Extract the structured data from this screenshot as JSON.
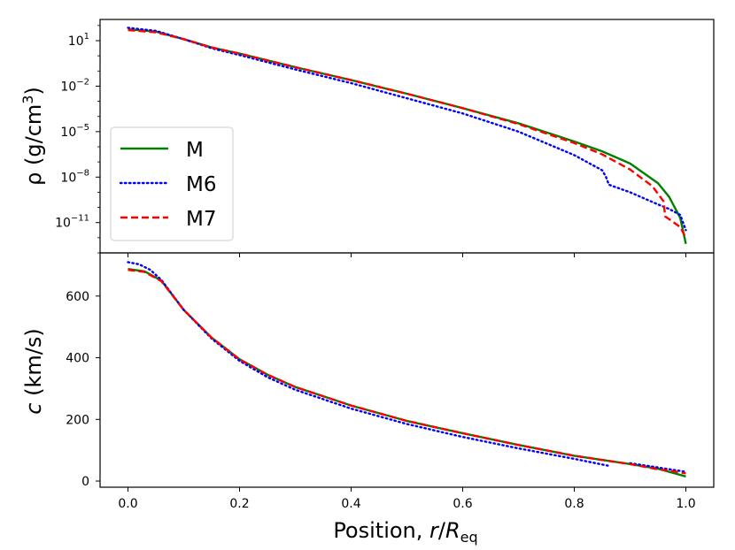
{
  "chart_data": [
    {
      "type": "line",
      "panel": "top",
      "yscale": "log",
      "ylabel_main": "ρ (g/cm",
      "ylabel_sup": "3",
      "ylabel_tail": ")",
      "xlim": [
        -0.05,
        1.05
      ],
      "ylog_range": [
        -13.0,
        2.4
      ],
      "ytick_exps": [
        1,
        -2,
        -5,
        -8,
        -11
      ],
      "ytick_base": "10",
      "ytick_sups": [
        "1",
        "−2",
        "−5",
        "−8",
        "−11"
      ],
      "legend": {
        "position": "lower-left",
        "entries": [
          "M",
          "M6",
          "M7"
        ]
      },
      "series": [
        {
          "name": "M",
          "color": "#008000",
          "style": "solid",
          "points": [
            [
              0.0,
              1.75
            ],
            [
              0.05,
              1.6
            ],
            [
              0.1,
              1.1
            ],
            [
              0.15,
              0.55
            ],
            [
              0.2,
              0.15
            ],
            [
              0.3,
              -0.75
            ],
            [
              0.4,
              -1.6
            ],
            [
              0.5,
              -2.5
            ],
            [
              0.6,
              -3.45
            ],
            [
              0.7,
              -4.45
            ],
            [
              0.8,
              -5.65
            ],
            [
              0.85,
              -6.3
            ],
            [
              0.9,
              -7.1
            ],
            [
              0.95,
              -8.4
            ],
            [
              0.97,
              -9.3
            ],
            [
              0.99,
              -10.7
            ],
            [
              1.0,
              -12.4
            ]
          ]
        },
        {
          "name": "M6",
          "color": "#0000ff",
          "style": "dotted",
          "points": [
            [
              0.0,
              1.85
            ],
            [
              0.05,
              1.65
            ],
            [
              0.1,
              1.1
            ],
            [
              0.15,
              0.5
            ],
            [
              0.2,
              0.05
            ],
            [
              0.3,
              -0.9
            ],
            [
              0.4,
              -1.8
            ],
            [
              0.5,
              -2.8
            ],
            [
              0.6,
              -3.8
            ],
            [
              0.7,
              -5.0
            ],
            [
              0.8,
              -6.55
            ],
            [
              0.85,
              -7.55
            ],
            [
              0.857,
              -8.0
            ],
            [
              0.862,
              -8.5
            ],
            [
              0.9,
              -9.0
            ],
            [
              0.95,
              -9.8
            ],
            [
              0.97,
              -10.1
            ],
            [
              0.99,
              -10.5
            ],
            [
              1.0,
              -11.5
            ]
          ]
        },
        {
          "name": "M7",
          "color": "#ff0000",
          "style": "dashed",
          "points": [
            [
              0.0,
              1.7
            ],
            [
              0.05,
              1.55
            ],
            [
              0.1,
              1.1
            ],
            [
              0.15,
              0.55
            ],
            [
              0.2,
              0.15
            ],
            [
              0.3,
              -0.75
            ],
            [
              0.4,
              -1.6
            ],
            [
              0.5,
              -2.5
            ],
            [
              0.6,
              -3.45
            ],
            [
              0.7,
              -4.5
            ],
            [
              0.8,
              -5.75
            ],
            [
              0.85,
              -6.5
            ],
            [
              0.9,
              -7.5
            ],
            [
              0.94,
              -8.6
            ],
            [
              0.96,
              -9.6
            ],
            [
              0.963,
              -10.6
            ],
            [
              0.975,
              -10.9
            ],
            [
              0.99,
              -11.3
            ],
            [
              1.0,
              -12.0
            ]
          ]
        }
      ]
    },
    {
      "type": "line",
      "panel": "bottom",
      "yscale": "linear",
      "ylabel_main": "c",
      "ylabel_tail": " (km/s)",
      "xlabel_main": "Position, ",
      "xlabel_r": "r",
      "xlabel_slash": "/",
      "xlabel_R": "R",
      "xlabel_sub": "eq",
      "xlim": [
        -0.05,
        1.05
      ],
      "ylim": [
        -20,
        740
      ],
      "xticks": [
        0.0,
        0.2,
        0.4,
        0.6,
        0.8,
        1.0
      ],
      "xtick_labels": [
        "0.0",
        "0.2",
        "0.4",
        "0.6",
        "0.8",
        "1.0"
      ],
      "yticks": [
        0,
        200,
        400,
        600
      ],
      "ytick_labels": [
        "0",
        "200",
        "400",
        "600"
      ],
      "series": [
        {
          "name": "M",
          "color": "#008000",
          "style": "solid",
          "points": [
            [
              0.0,
              688
            ],
            [
              0.03,
              680
            ],
            [
              0.06,
              650
            ],
            [
              0.1,
              555
            ],
            [
              0.15,
              465
            ],
            [
              0.2,
              395
            ],
            [
              0.25,
              345
            ],
            [
              0.3,
              305
            ],
            [
              0.4,
              245
            ],
            [
              0.5,
              195
            ],
            [
              0.6,
              155
            ],
            [
              0.7,
              117
            ],
            [
              0.8,
              82
            ],
            [
              0.9,
              55
            ],
            [
              0.95,
              40
            ],
            [
              1.0,
              15
            ]
          ]
        },
        {
          "name": "M6",
          "color": "#0000ff",
          "style": "dotted",
          "points": [
            [
              0.0,
              710
            ],
            [
              0.02,
              703
            ],
            [
              0.04,
              685
            ],
            [
              0.06,
              652
            ],
            [
              0.1,
              555
            ],
            [
              0.15,
              462
            ],
            [
              0.2,
              390
            ],
            [
              0.25,
              337
            ],
            [
              0.3,
              296
            ],
            [
              0.4,
              235
            ],
            [
              0.5,
              185
            ],
            [
              0.6,
              143
            ],
            [
              0.7,
              106
            ],
            [
              0.8,
              72
            ],
            [
              0.86,
              50
            ]
          ]
        },
        {
          "name": "M6",
          "color": "#0000ff",
          "style": "dotted",
          "points": [
            [
              0.9,
              58
            ],
            [
              0.95,
              44
            ],
            [
              1.0,
              30
            ]
          ]
        },
        {
          "name": "M7",
          "color": "#ff0000",
          "style": "dashed",
          "points": [
            [
              0.0,
              685
            ],
            [
              0.03,
              678
            ],
            [
              0.06,
              648
            ],
            [
              0.1,
              555
            ],
            [
              0.15,
              465
            ],
            [
              0.2,
              395
            ],
            [
              0.25,
              345
            ],
            [
              0.3,
              305
            ],
            [
              0.4,
              245
            ],
            [
              0.5,
              195
            ],
            [
              0.6,
              155
            ],
            [
              0.7,
              117
            ],
            [
              0.8,
              82
            ],
            [
              0.9,
              55
            ],
            [
              0.95,
              38
            ],
            [
              0.97,
              34
            ],
            [
              1.0,
              25
            ]
          ]
        }
      ]
    }
  ]
}
